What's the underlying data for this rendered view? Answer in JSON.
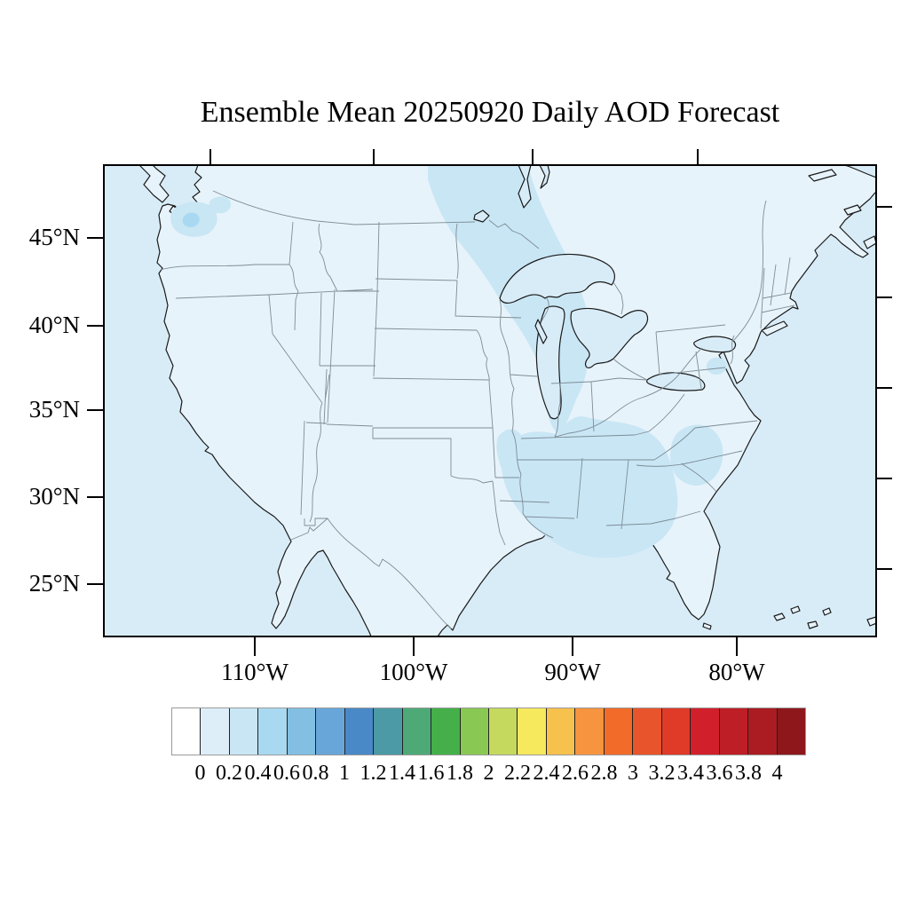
{
  "title": "Ensemble Mean 20250920 Daily AOD Forecast",
  "map": {
    "y_axis": {
      "labels": [
        "45°N",
        "40°N",
        "35°N",
        "30°N",
        "25°N"
      ]
    },
    "x_axis": {
      "labels": [
        "110°W",
        "100°W",
        "90°W",
        "80°W"
      ]
    }
  },
  "colorbar": {
    "tick_labels": [
      "0",
      "0.2",
      "0.4",
      "0.6",
      "0.8",
      "1",
      "1.2",
      "1.4",
      "1.6",
      "1.8",
      "2",
      "2.2",
      "2.4",
      "2.6",
      "2.8",
      "3",
      "3.2",
      "3.4",
      "3.6",
      "3.8",
      "4"
    ],
    "colors": [
      "#ffffff",
      "#ddeef9",
      "#c9e6f5",
      "#a9d9f0",
      "#82bfe3",
      "#68a6d9",
      "#4a89c8",
      "#4b9aa5",
      "#4daa77",
      "#45b04a",
      "#8ac854",
      "#c4d95e",
      "#f7e95e",
      "#f6c14c",
      "#f69440",
      "#f26b29",
      "#e8552c",
      "#e03a29",
      "#d1202b",
      "#be1e26",
      "#aa1c21",
      "#8e171b"
    ]
  },
  "chart_data": {
    "type": "heatmap",
    "subtype": "filled-contour-geographic-map",
    "title": "Ensemble Mean 20250920 Daily AOD Forecast",
    "variable": "AOD (Aerosol Optical Depth)",
    "statistic": "Ensemble Mean",
    "date": "20250920",
    "region": "Continental United States with southern Canada and northern Mexico",
    "lat_tick_labels": [
      "45°N",
      "40°N",
      "35°N",
      "30°N",
      "25°N"
    ],
    "lon_tick_labels": [
      "110°W",
      "100°W",
      "90°W",
      "80°W"
    ],
    "levels": [
      0,
      0.2,
      0.4,
      0.6,
      0.8,
      1,
      1.2,
      1.4,
      1.6,
      1.8,
      2,
      2.2,
      2.4,
      2.6,
      2.8,
      3,
      3.2,
      3.4,
      3.6,
      3.8,
      4
    ],
    "colorbar_range": [
      0,
      4
    ],
    "legend_position": "bottom",
    "grid": "off",
    "features": [
      {
        "area": "Most of domain (land and ocean)",
        "aod": "0-0.2"
      },
      {
        "area": "Washington state patches",
        "aod": "0.2-0.6 with small 0.4-0.6 core"
      },
      {
        "area": "Plume from Canada through Minnesota/Wisconsin, Lake Michigan, Illinois/Indiana",
        "aod": "0.2-0.4"
      },
      {
        "area": "Lower Mississippi Valley, Alabama/Georgia, Gulf Coast offshore",
        "aod": "0.2-0.4"
      },
      {
        "area": "Georgia / South Carolina coastal patch",
        "aod": "0.2-0.4"
      },
      {
        "area": "Chesapeake Bay small patch",
        "aod": "0.2-0.4"
      }
    ]
  }
}
